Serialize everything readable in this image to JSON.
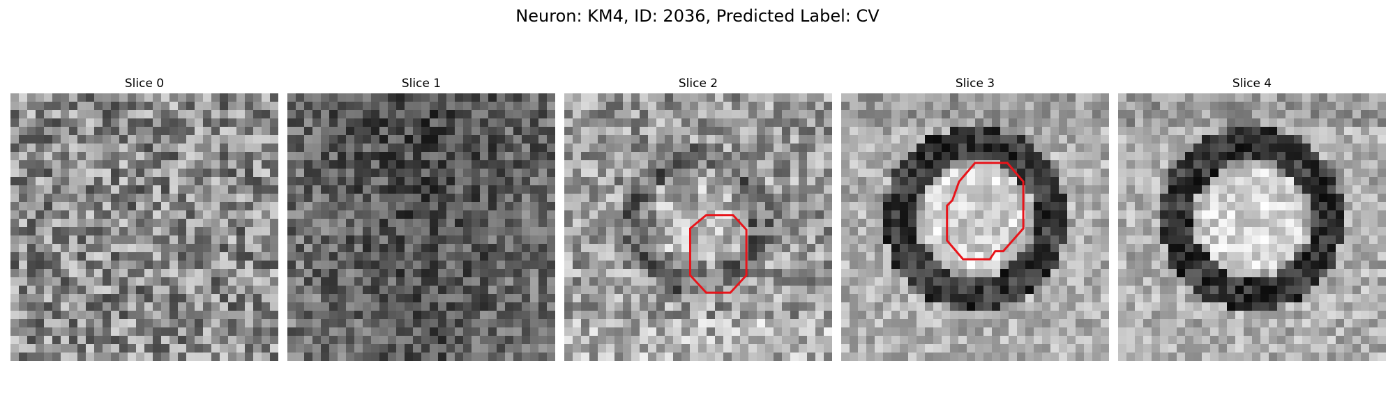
{
  "figure": {
    "title": "Neuron: KM4, ID: 2036, Predicted Label: CV"
  },
  "panels": [
    {
      "title": "Slice 0",
      "texture": "noise-medium",
      "contour": false
    },
    {
      "title": "Slice 1",
      "texture": "dark-noise",
      "contour": false
    },
    {
      "title": "Slice 2",
      "texture": "faint-ring",
      "contour": true
    },
    {
      "title": "Slice 3",
      "texture": "strong-ring",
      "contour": true
    },
    {
      "title": "Slice 4",
      "texture": "strong-ring",
      "contour": false
    }
  ],
  "colors": {
    "contour": "#e8141a",
    "colormap": "gray"
  }
}
